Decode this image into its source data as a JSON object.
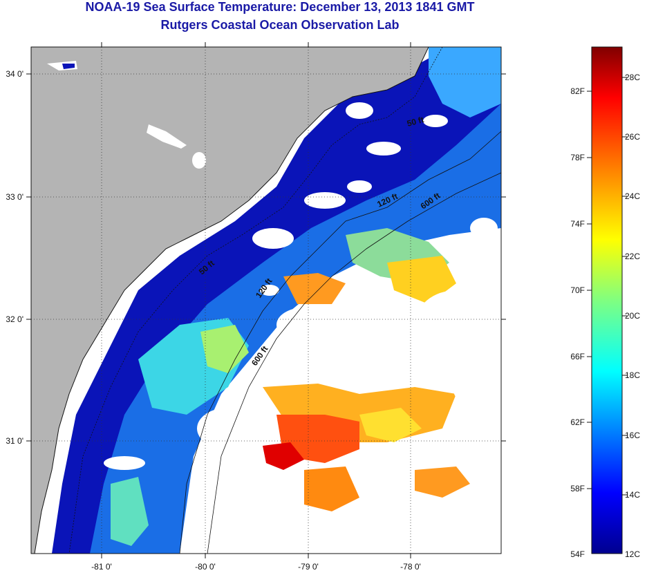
{
  "title_line1": "NOAA-19 Sea Surface Temperature:  December 13, 2013 1841 GMT",
  "title_line2": "Rutgers Coastal Ocean Observation Lab",
  "map": {
    "lon_ticks": [
      "-81 0'",
      "-80 0'",
      "-79 0'",
      "-78 0'"
    ],
    "lat_ticks": [
      "34 0'",
      "33 0'",
      "32 0'",
      "31 0'"
    ],
    "contours": [
      "50 ft",
      "120 ft",
      "600 ft",
      "50 ft",
      "120 ft",
      "600 ft"
    ],
    "colors": {
      "land": "#b4b4b4",
      "no_data": "#ffffff",
      "graticule": "#333333"
    }
  },
  "colorbar": {
    "fahrenheit_labels": [
      "82F",
      "78F",
      "74F",
      "70F",
      "66F",
      "62F",
      "58F",
      "54F"
    ],
    "celsius_labels": [
      "28C",
      "26C",
      "24C",
      "22C",
      "20C",
      "18C",
      "16C",
      "14C",
      "12C"
    ],
    "colormap": [
      "#00008f",
      "#0000ff",
      "#0080ff",
      "#00ffff",
      "#80ff80",
      "#ffff00",
      "#ff8000",
      "#ff0000",
      "#800000"
    ]
  }
}
